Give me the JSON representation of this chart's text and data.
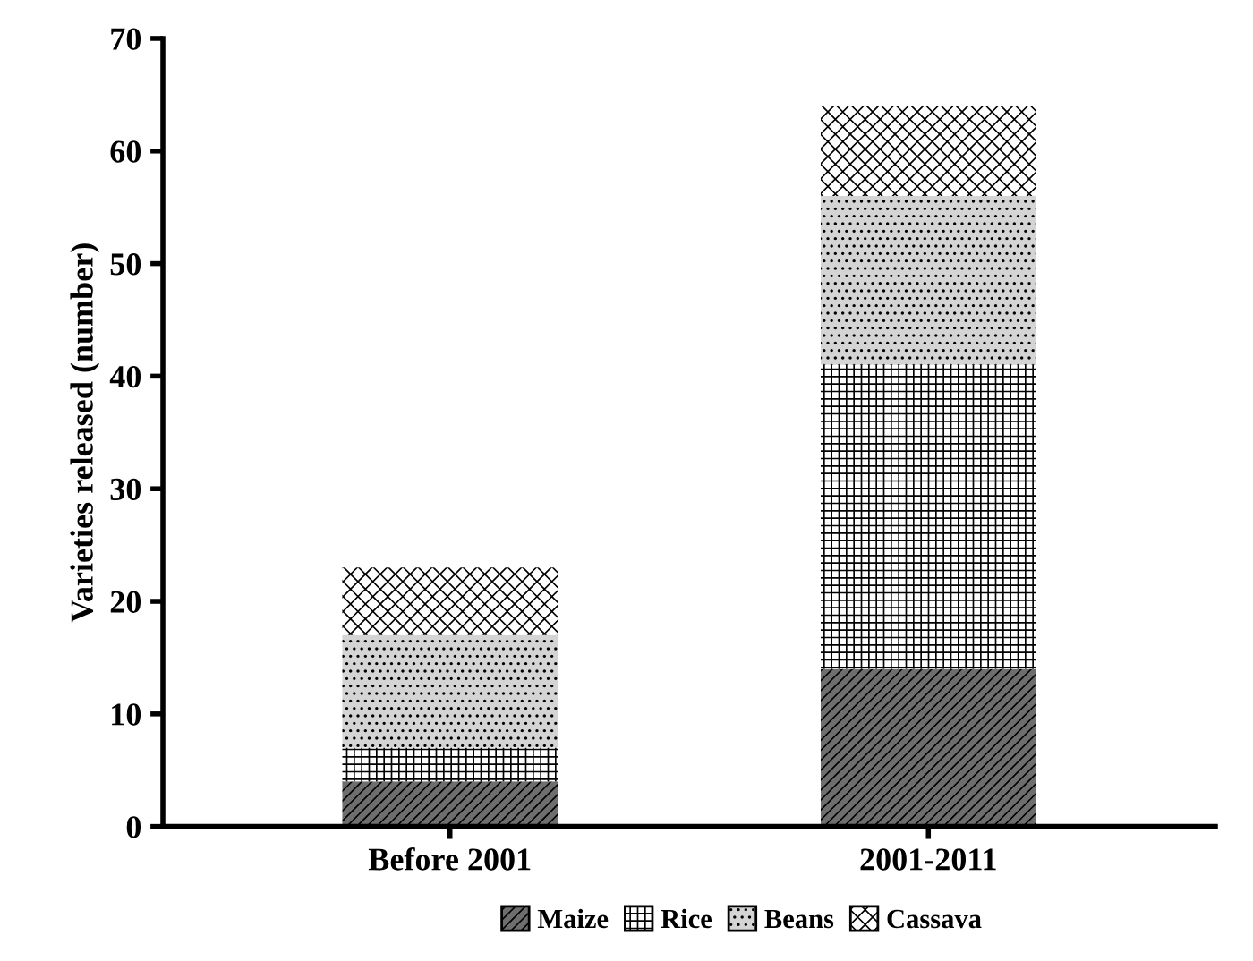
{
  "chart_data": {
    "type": "bar",
    "stacked": true,
    "ylabel": "Varieties released (number)",
    "categories": [
      "Before 2001",
      "2001-2011"
    ],
    "series": [
      {
        "name": "Maize",
        "color": "#6e6e6e",
        "values": [
          4,
          14
        ]
      },
      {
        "name": "Rice",
        "color": "#ffffff",
        "values": [
          3,
          27
        ]
      },
      {
        "name": "Beans",
        "color": "#d4d4d4",
        "values": [
          10,
          15
        ]
      },
      {
        "name": "Cassava",
        "color": "#ffffff",
        "values": [
          6,
          8
        ]
      }
    ],
    "ylim": [
      0,
      70
    ],
    "yticks": [
      0,
      10,
      20,
      30,
      40,
      50,
      60,
      70
    ],
    "grid": false,
    "legend": "bottom"
  }
}
